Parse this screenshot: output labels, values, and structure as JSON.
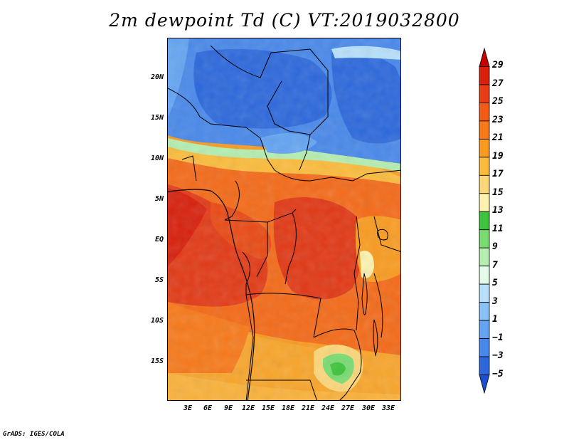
{
  "title": "2m dewpoint Td (C) VT:2019032800",
  "credit": "GrADS: IGES/COLA",
  "lat_labels": [
    "20N",
    "15N",
    "10N",
    "5N",
    "EQ",
    "5S",
    "10S",
    "15S"
  ],
  "lon_labels": [
    "3E",
    "6E",
    "9E",
    "12E",
    "15E",
    "18E",
    "21E",
    "24E",
    "27E",
    "30E",
    "33E"
  ],
  "colorbar": {
    "labels": [
      "29",
      "27",
      "25",
      "23",
      "21",
      "19",
      "17",
      "15",
      "13",
      "11",
      "9",
      "7",
      "5",
      "3",
      "1",
      "−1",
      "−3",
      "−5"
    ],
    "colors": [
      "#c60000",
      "#d8200c",
      "#e83c14",
      "#f35a16",
      "#f7791a",
      "#f99b20",
      "#fbbc3c",
      "#fcd77a",
      "#fdf2b0",
      "#3ec43c",
      "#78dc70",
      "#b4eeb0",
      "#e4fae8",
      "#b8e0fc",
      "#8ac2f8",
      "#64a4f2",
      "#4888ea",
      "#2c68dc",
      "#1c4ed0"
    ]
  }
}
